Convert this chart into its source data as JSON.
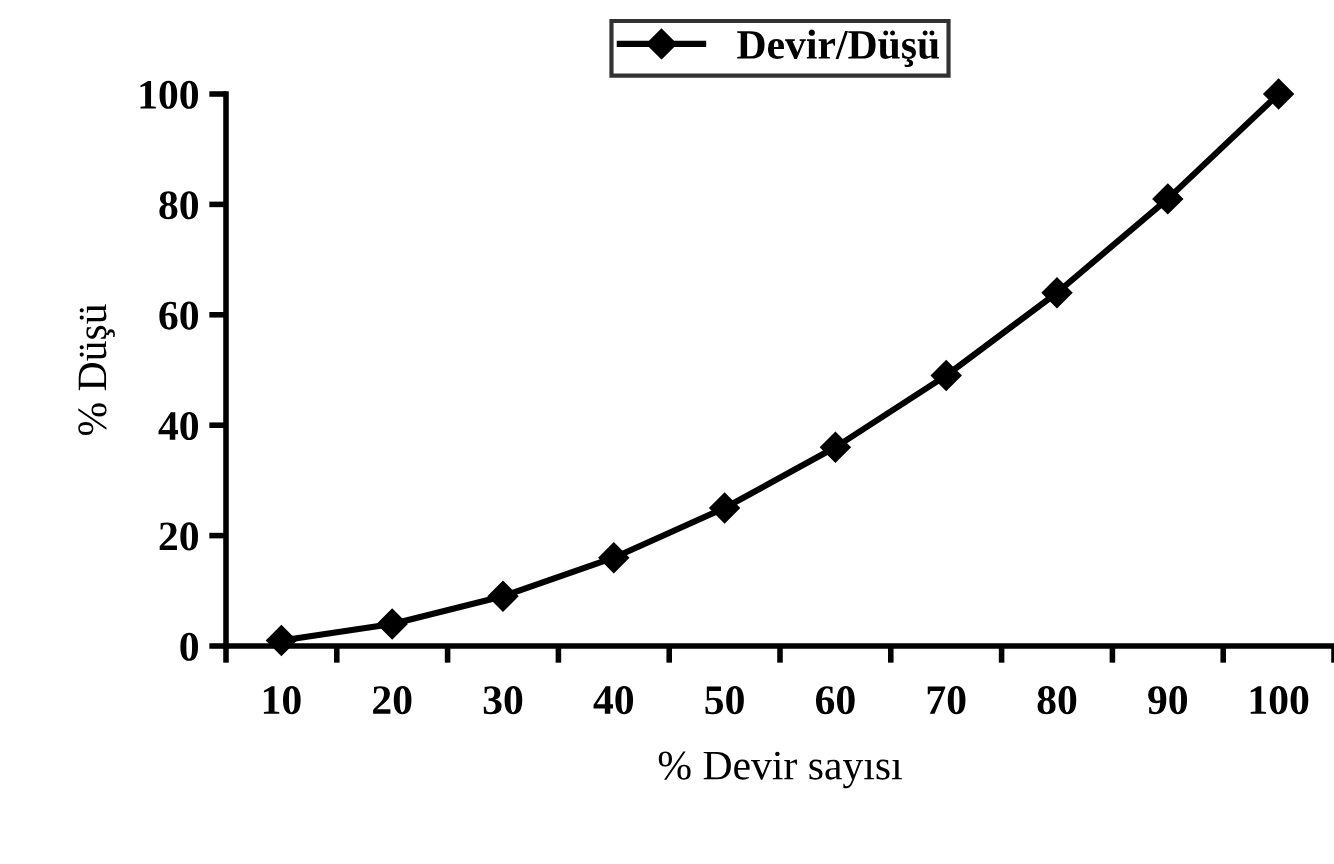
{
  "chart_data": {
    "type": "line",
    "xlabel": "% Devir sayısı",
    "ylabel": "% Düşü",
    "categories": [
      "10",
      "20",
      "30",
      "40",
      "50",
      "60",
      "70",
      "80",
      "90",
      "100"
    ],
    "series": [
      {
        "name": "Devir/Düşü",
        "color": "#000000",
        "values": [
          1,
          4,
          9,
          16,
          25,
          36,
          49,
          64,
          81,
          100
        ]
      }
    ],
    "ylim": [
      0,
      100
    ],
    "yticks": [
      0,
      20,
      40,
      60,
      80,
      100
    ],
    "grid": false,
    "legend": "top",
    "marker": "diamond",
    "line_style": "solid"
  }
}
